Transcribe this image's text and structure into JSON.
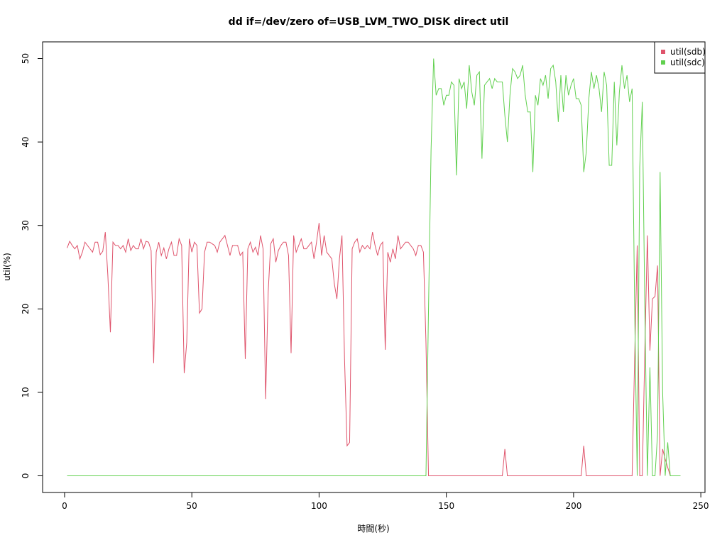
{
  "chart_data": {
    "type": "line",
    "title": "dd if=/dev/zero of=USB_LVM_TWO_DISK direct util",
    "x_label": "時間(秒)",
    "y_label": "util(%)",
    "legend": "topright",
    "xlim": [
      -8.64,
      251.64
    ],
    "xticks": [
      0,
      50,
      100,
      150,
      200,
      250
    ],
    "ylim": [
      -2,
      52
    ],
    "yticks": [
      0,
      10,
      20,
      30,
      40,
      50
    ],
    "x": [
      1,
      2,
      3,
      4,
      5,
      6,
      7,
      8,
      9,
      10,
      11,
      12,
      13,
      14,
      15,
      16,
      17,
      18,
      19,
      20,
      21,
      22,
      23,
      24,
      25,
      26,
      27,
      28,
      29,
      30,
      31,
      32,
      33,
      34,
      35,
      36,
      37,
      38,
      39,
      40,
      41,
      42,
      43,
      44,
      45,
      46,
      47,
      48,
      49,
      50,
      51,
      52,
      53,
      54,
      55,
      56,
      57,
      58,
      59,
      60,
      61,
      62,
      63,
      64,
      65,
      66,
      67,
      68,
      69,
      70,
      71,
      72,
      73,
      74,
      75,
      76,
      77,
      78,
      79,
      80,
      81,
      82,
      83,
      84,
      85,
      86,
      87,
      88,
      89,
      90,
      91,
      92,
      93,
      94,
      95,
      96,
      97,
      98,
      99,
      100,
      101,
      102,
      103,
      104,
      105,
      106,
      107,
      108,
      109,
      110,
      111,
      112,
      113,
      114,
      115,
      116,
      117,
      118,
      119,
      120,
      121,
      122,
      123,
      124,
      125,
      126,
      127,
      128,
      129,
      130,
      131,
      132,
      133,
      134,
      135,
      136,
      137,
      138,
      139,
      140,
      141,
      142,
      143,
      144,
      145,
      146,
      147,
      148,
      149,
      150,
      151,
      152,
      153,
      154,
      155,
      156,
      157,
      158,
      159,
      160,
      161,
      162,
      163,
      164,
      165,
      166,
      167,
      168,
      169,
      170,
      171,
      172,
      173,
      174,
      175,
      176,
      177,
      178,
      179,
      180,
      181,
      182,
      183,
      184,
      185,
      186,
      187,
      188,
      189,
      190,
      191,
      192,
      193,
      194,
      195,
      196,
      197,
      198,
      199,
      200,
      201,
      202,
      203,
      204,
      205,
      206,
      207,
      208,
      209,
      210,
      211,
      212,
      213,
      214,
      215,
      216,
      217,
      218,
      219,
      220,
      221,
      222,
      223,
      224,
      225,
      226,
      227,
      228,
      229,
      230,
      231,
      232,
      233,
      234,
      235,
      236,
      237,
      238,
      239,
      240,
      241,
      242
    ],
    "series": [
      {
        "name": "util(sdb)",
        "color": "#DF536B",
        "values": [
          27.3,
          28.1,
          27.6,
          27.2,
          27.6,
          26.0,
          26.8,
          28.0,
          27.6,
          27.2,
          26.8,
          28.0,
          28.0,
          26.5,
          26.9,
          29.2,
          24.0,
          17.2,
          28.0,
          27.6,
          27.6,
          27.2,
          27.6,
          26.8,
          28.4,
          27.0,
          27.6,
          27.2,
          27.2,
          28.4,
          27.2,
          28.1,
          28.0,
          27.0,
          13.5,
          26.8,
          28.0,
          26.4,
          27.3,
          26.0,
          27.2,
          28.0,
          26.4,
          26.4,
          28.4,
          27.6,
          12.3,
          16.0,
          28.4,
          26.8,
          28.0,
          27.6,
          19.5,
          20.0,
          26.8,
          28.0,
          28.0,
          27.8,
          27.6,
          26.8,
          28.0,
          28.4,
          28.8,
          27.6,
          26.4,
          27.6,
          27.6,
          27.6,
          26.4,
          26.8,
          14.0,
          27.2,
          28.0,
          26.8,
          27.4,
          26.4,
          28.8,
          27.2,
          9.2,
          22.0,
          27.8,
          28.4,
          25.6,
          27.0,
          27.6,
          28.0,
          28.0,
          26.4,
          14.7,
          28.8,
          26.8,
          27.6,
          28.4,
          27.2,
          27.2,
          27.6,
          28.0,
          26.0,
          28.0,
          30.3,
          26.4,
          28.8,
          26.8,
          26.4,
          26.0,
          23.0,
          21.2,
          26.0,
          28.8,
          14.0,
          3.6,
          4.0,
          27.2,
          28.0,
          28.4,
          26.8,
          27.6,
          27.2,
          27.6,
          27.2,
          29.2,
          27.6,
          26.4,
          27.6,
          28.0,
          15.1,
          26.8,
          25.6,
          27.2,
          26.0,
          28.8,
          27.2,
          27.6,
          28.0,
          28.0,
          27.6,
          27.2,
          26.4,
          27.6,
          27.6,
          26.8,
          16.0,
          0,
          0,
          0,
          0,
          0,
          0,
          0,
          0,
          0,
          0,
          0,
          0,
          0,
          0,
          0,
          0,
          0,
          0,
          0,
          0,
          0,
          0,
          0,
          0,
          0,
          0,
          0,
          0,
          0,
          0,
          3.2,
          0,
          0,
          0,
          0,
          0,
          0,
          0,
          0,
          0,
          0,
          0,
          0,
          0,
          0,
          0,
          0,
          0,
          0,
          0,
          0,
          0,
          0,
          0,
          0,
          0,
          0,
          0,
          0,
          0,
          0,
          3.6,
          0,
          0,
          0,
          0,
          0,
          0,
          0,
          0,
          0,
          0,
          0,
          0,
          0,
          0,
          0,
          0,
          0,
          0,
          0,
          14,
          27.6,
          0,
          0,
          15,
          28.8,
          15,
          21.2,
          21.5,
          25.2,
          0,
          3.2,
          2.0,
          1.0,
          0,
          0,
          0,
          0,
          0
        ]
      },
      {
        "name": "util(sdc)",
        "color": "#61D04F",
        "values": [
          0,
          0,
          0,
          0,
          0,
          0,
          0,
          0,
          0,
          0,
          0,
          0,
          0,
          0,
          0,
          0,
          0,
          0,
          0,
          0,
          0,
          0,
          0,
          0,
          0,
          0,
          0,
          0,
          0,
          0,
          0,
          0,
          0,
          0,
          0,
          0,
          0,
          0,
          0,
          0,
          0,
          0,
          0,
          0,
          0,
          0,
          0,
          0,
          0,
          0,
          0,
          0,
          0,
          0,
          0,
          0,
          0,
          0,
          0,
          0,
          0,
          0,
          0,
          0,
          0,
          0,
          0,
          0,
          0,
          0,
          0,
          0,
          0,
          0,
          0,
          0,
          0,
          0,
          0,
          0,
          0,
          0,
          0,
          0,
          0,
          0,
          0,
          0,
          0,
          0,
          0,
          0,
          0,
          0,
          0,
          0,
          0,
          0,
          0,
          0,
          0,
          0,
          0,
          0,
          0,
          0,
          0,
          0,
          0,
          0,
          0,
          0,
          0,
          0,
          0,
          0,
          0,
          0,
          0,
          0,
          0,
          0,
          0,
          0,
          0,
          0,
          0,
          0,
          0,
          0,
          0,
          0,
          0,
          0,
          0,
          0,
          0,
          0,
          0,
          0,
          0,
          0,
          20,
          39,
          50,
          45.6,
          46.4,
          46.4,
          44.4,
          45.6,
          45.6,
          47.2,
          46.8,
          36.0,
          47.6,
          46.4,
          47.2,
          44.0,
          49.2,
          46.0,
          44.4,
          48.0,
          48.4,
          38.0,
          46.8,
          47.2,
          47.6,
          46.4,
          47.6,
          47.2,
          47.2,
          47.2,
          43.2,
          40.0,
          45.6,
          48.8,
          48.4,
          47.6,
          48.0,
          49.2,
          45.6,
          43.6,
          43.6,
          36.4,
          45.6,
          44.4,
          47.6,
          46.8,
          48.0,
          45.2,
          48.8,
          49.2,
          47.2,
          42.4,
          48.0,
          43.6,
          48.0,
          45.6,
          46.8,
          47.6,
          45.2,
          45.2,
          44.4,
          36.4,
          38.8,
          45.2,
          48.4,
          46.4,
          48.0,
          46.4,
          43.6,
          48.4,
          46.8,
          37.2,
          37.2,
          47.2,
          39.6,
          46.0,
          49.2,
          46.4,
          48.0,
          44.8,
          46.4,
          20,
          0,
          37.0,
          44.8,
          20,
          0,
          13,
          0,
          0,
          5,
          36.4,
          10,
          0,
          4.0,
          0,
          0,
          0,
          0,
          0
        ]
      }
    ]
  }
}
